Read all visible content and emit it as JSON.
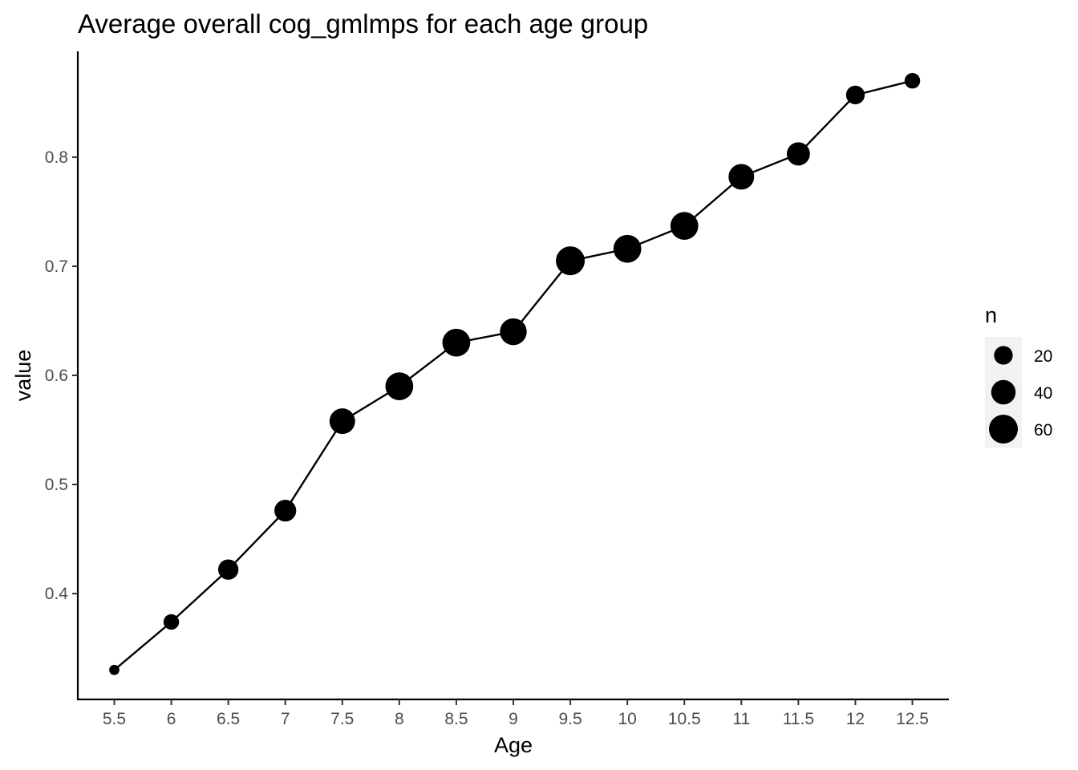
{
  "chart_data": {
    "type": "line",
    "title": "Average overall cog_gmlmps for each age group",
    "xlabel": "Age",
    "ylabel": "value",
    "x": [
      5.5,
      6,
      6.5,
      7,
      7.5,
      8,
      8.5,
      9,
      9.5,
      10,
      10.5,
      11,
      11.5,
      12,
      12.5
    ],
    "x_tick_labels": [
      "5.5",
      "6",
      "6.5",
      "7",
      "7.5",
      "8",
      "8.5",
      "9",
      "9.5",
      "10",
      "10.5",
      "11",
      "11.5",
      "12",
      "12.5"
    ],
    "values": [
      0.33,
      0.374,
      0.422,
      0.476,
      0.558,
      0.59,
      0.63,
      0.64,
      0.705,
      0.716,
      0.737,
      0.782,
      0.803,
      0.857,
      0.87
    ],
    "n": [
      3,
      12,
      25,
      30,
      45,
      55,
      55,
      50,
      60,
      55,
      55,
      45,
      35,
      20,
      12
    ],
    "y_ticks": [
      0.4,
      0.5,
      0.6,
      0.7,
      0.8
    ],
    "y_tick_labels": [
      "0.4",
      "0.5",
      "0.6",
      "0.7",
      "0.8"
    ],
    "ylim": [
      0.303,
      0.897
    ],
    "xlim": [
      5.18,
      12.82
    ],
    "grid": false,
    "legend": {
      "title": "n",
      "position": "right",
      "entries": [
        {
          "label": "20",
          "value": 20
        },
        {
          "label": "40",
          "value": 40
        },
        {
          "label": "60",
          "value": 60
        }
      ]
    },
    "colors": {
      "points": "#000000",
      "line": "#000000",
      "axis": "#000000",
      "tick_label": "#4d4d4d",
      "legend_key_bg": "#f2f2f2"
    }
  }
}
